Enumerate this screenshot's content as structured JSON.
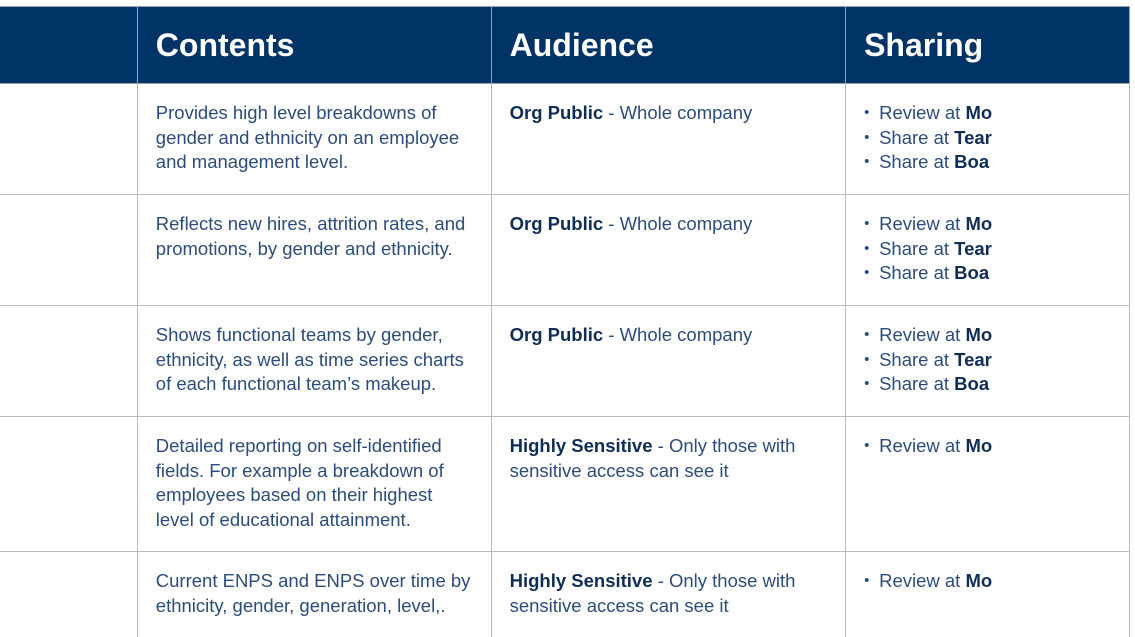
{
  "table": {
    "headers": [
      "",
      "Contents",
      "Audience",
      "Sharing"
    ],
    "rows": [
      {
        "contents": "Provides high level breakdowns of gender and ethnicity on an employee and management level.",
        "audience_label": "Org Public",
        "audience_desc": " - Whole company",
        "sharing": [
          {
            "prefix": "Review at ",
            "bold": "Mo"
          },
          {
            "prefix": "Share at ",
            "bold": "Tear"
          },
          {
            "prefix": "Share at ",
            "bold": "Boa"
          }
        ]
      },
      {
        "contents": "Reflects new hires, attrition rates, and promotions, by gender and ethnicity.",
        "audience_label": "Org Public",
        "audience_desc": " - Whole company",
        "sharing": [
          {
            "prefix": "Review at ",
            "bold": "Mo"
          },
          {
            "prefix": "Share at ",
            "bold": "Tear"
          },
          {
            "prefix": "Share at ",
            "bold": "Boa"
          }
        ]
      },
      {
        "contents": "Shows functional teams by gender, ethnicity, as well as time series charts of each functional team’s makeup.",
        "audience_label": "Org Public",
        "audience_desc": " - Whole company",
        "sharing": [
          {
            "prefix": "Review at ",
            "bold": "Mo"
          },
          {
            "prefix": "Share at ",
            "bold": "Tear"
          },
          {
            "prefix": "Share at ",
            "bold": "Boa"
          }
        ]
      },
      {
        "contents": "Detailed reporting on self-identified fields. For example a breakdown of employees based on their highest level of educational attainment.",
        "audience_label": "Highly Sensitive",
        "audience_desc": " - Only those with sensitive access can see it",
        "sharing": [
          {
            "prefix": "Review at ",
            "bold": "Mo"
          }
        ]
      },
      {
        "contents": "Current ENPS and ENPS over time  by ethnicity, gender, generation, level,.",
        "audience_label": "Highly Sensitive",
        "audience_desc": " - Only those with sensitive access can see it",
        "sharing": [
          {
            "prefix": "Review at ",
            "bold": "Mo"
          }
        ]
      }
    ]
  }
}
